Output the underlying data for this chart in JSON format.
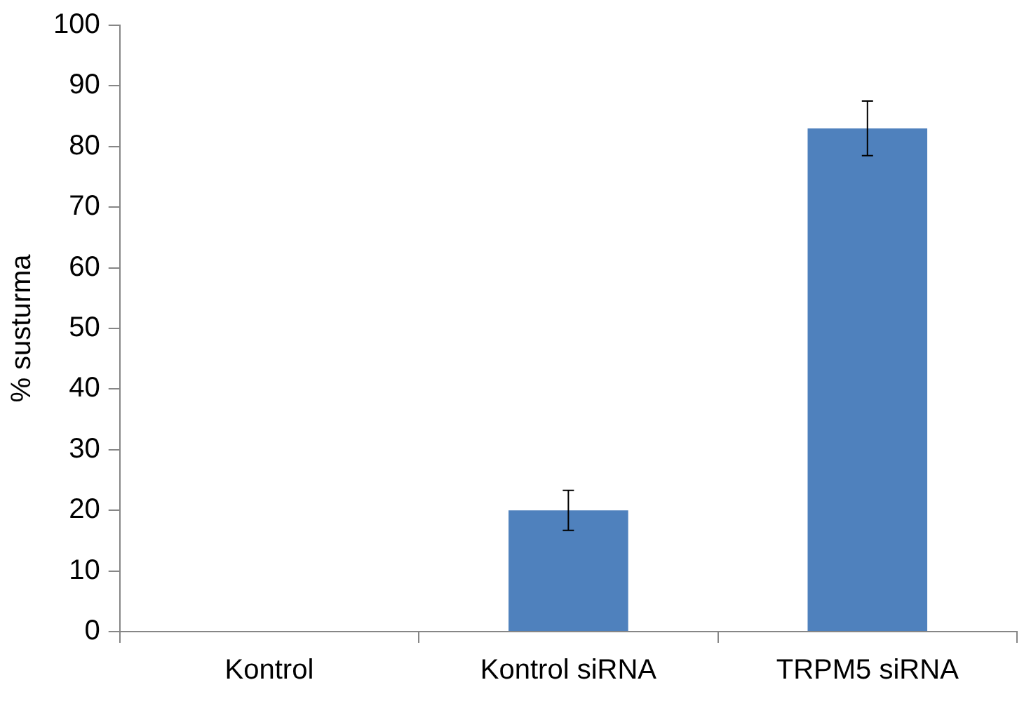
{
  "chart_data": {
    "type": "bar",
    "ylabel": "% susturma",
    "categories": [
      "Kontrol",
      "Kontrol siRNA",
      "TRPM5 siRNA"
    ],
    "values": [
      0,
      20,
      83
    ],
    "errors": [
      null,
      3.3,
      4.5
    ],
    "color": "#4f81bd",
    "ylim": [
      0,
      100
    ],
    "yticks": [
      0,
      10,
      20,
      30,
      40,
      50,
      60,
      70,
      80,
      90,
      100
    ],
    "grid": false,
    "legend": false
  }
}
